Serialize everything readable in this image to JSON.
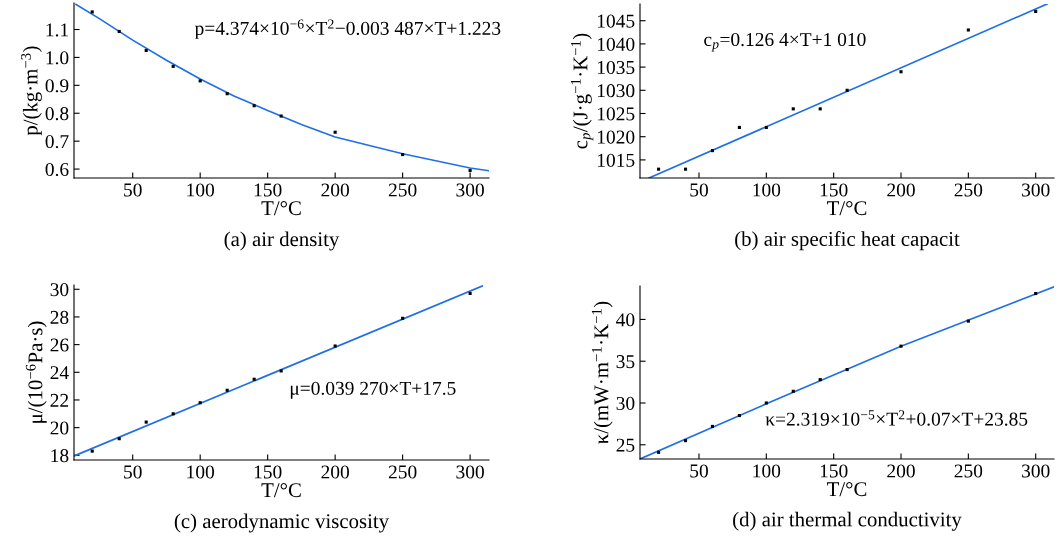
{
  "chart_data": [
    {
      "type": "scatter",
      "title": "(a) air density",
      "xlabel": "T/°C",
      "ylabel": "p/(kg·m$^{−3}$)",
      "annotations": [
        "p=4.374×10$^{−6}$×T$^{2}$−0.003 487×T+1.223"
      ],
      "x": [
        20,
        40,
        60,
        80,
        100,
        120,
        140,
        160,
        200,
        250,
        300
      ],
      "xlim": [
        6.5,
        314
      ],
      "ylim": [
        0.568,
        1.195
      ],
      "xticks": [
        50,
        100,
        150,
        200,
        250,
        300
      ],
      "yticks": [
        0.6,
        0.7,
        0.8,
        0.9,
        {
          "value": 1,
          "label": "1.0"
        },
        1.1
      ],
      "grid": false,
      "series": [
        {
          "color": "#000000",
          "marker": "square",
          "values": [
            1.163,
            1.093,
            1.025,
            0.968,
            0.916,
            0.87,
            0.827,
            0.79,
            0.732,
            0.652,
            0.595
          ]
        },
        {
          "type": "line",
          "color": "#1f6fe6",
          "x": [
            8,
            25,
            50,
            75,
            100,
            125,
            150,
            175,
            200,
            250,
            300,
            314
          ],
          "values": [
            1.19,
            1.14,
            1.062,
            0.99,
            0.923,
            0.862,
            0.81,
            0.76,
            0.715,
            0.655,
            0.604,
            0.594
          ]
        }
      ]
    },
    {
      "type": "scatter",
      "title": "(b) air specific heat capacit",
      "xlabel": "T/°C",
      "ylabel": "c$_{p}$/(J·g$^{−1}$·K$^{−1}$)",
      "annotations": [
        "c$_{p}$=0.126 4×T+1 010"
      ],
      "x": [
        20,
        40,
        60,
        80,
        100,
        120,
        140,
        160,
        200,
        250,
        300
      ],
      "xlim": [
        6.2,
        313.6
      ],
      "ylim": [
        1011.1,
        1048.6
      ],
      "xticks": [
        50,
        100,
        150,
        200,
        250,
        300
      ],
      "yticks": [
        1015,
        1020,
        1025,
        1030,
        1035,
        1040,
        1045
      ],
      "grid": false,
      "series": [
        {
          "color": "#000000",
          "marker": "square",
          "values": [
            1013,
            1013,
            1017,
            1022,
            1022,
            1026,
            1026,
            1030,
            1034,
            1043,
            1047
          ]
        },
        {
          "type": "line",
          "color": "#1f6fe6",
          "x": [
            12.9,
            308.4
          ],
          "values": [
            1011.1,
            1048.6
          ]
        }
      ]
    },
    {
      "type": "scatter",
      "title": "(c) aerodynamic viscosity",
      "xlabel": "T/°C",
      "ylabel": "μ/(10$^{−6}$Pa·s)",
      "annotations": [
        "μ=0.039 270×T+17.5"
      ],
      "x": [
        20,
        40,
        60,
        80,
        100,
        120,
        140,
        160,
        200,
        250,
        300
      ],
      "xlim": [
        6.5,
        314
      ],
      "ylim": [
        17.66,
        30.31
      ],
      "xticks": [
        50,
        100,
        150,
        200,
        250,
        300
      ],
      "yticks": [
        18,
        20,
        22,
        24,
        26,
        28,
        30
      ],
      "grid": false,
      "series": [
        {
          "color": "#000000",
          "marker": "square",
          "values": [
            18.3,
            19.2,
            20.4,
            21.0,
            21.8,
            22.7,
            23.5,
            24.1,
            25.9,
            27.9,
            29.7
          ]
        },
        {
          "type": "line",
          "color": "#1f6fe6",
          "x": [
            6.5,
            309
          ],
          "values": [
            17.95,
            30.24
          ]
        }
      ]
    },
    {
      "type": "scatter",
      "title": "(d) air thermal conductivity",
      "xlabel": "T/°C",
      "ylabel": "κ/(mW·m$^{−1}$·K$^{−1}$)",
      "annotations": [
        "κ=2.319×10$^{−5}$×T$^{2}$+0.07×T+23.85"
      ],
      "x": [
        20,
        40,
        60,
        80,
        100,
        120,
        140,
        160,
        200,
        250,
        300
      ],
      "xlim": [
        6.2,
        313.6
      ],
      "ylim": [
        23.3,
        44.0
      ],
      "xticks": [
        50,
        100,
        150,
        200,
        250,
        300
      ],
      "yticks": [
        25,
        30,
        35,
        40
      ],
      "grid": false,
      "series": [
        {
          "color": "#000000",
          "marker": "square",
          "values": [
            24.1,
            25.5,
            27.2,
            28.5,
            30.0,
            31.4,
            32.8,
            34.0,
            36.8,
            39.8,
            43.1
          ]
        },
        {
          "type": "line",
          "color": "#1f6fe6",
          "x": [
            6.2,
            100,
            200,
            313.6
          ],
          "values": [
            23.3,
            29.9,
            36.8,
            43.9
          ]
        }
      ]
    }
  ]
}
